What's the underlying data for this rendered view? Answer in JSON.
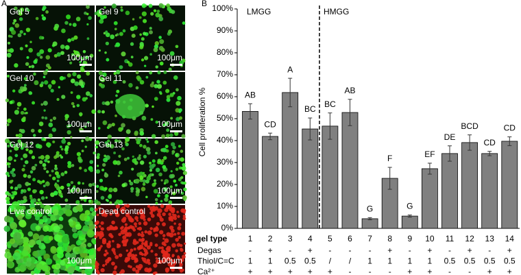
{
  "panel_a": {
    "label": "A",
    "images": [
      {
        "label": "Gel 5",
        "scale": "100μm"
      },
      {
        "label": "Gel 9",
        "scale": "100μm"
      },
      {
        "label": "Gel 10",
        "scale": "100μm"
      },
      {
        "label": "Gel 11",
        "scale": "100μm"
      },
      {
        "label": "Gel 12",
        "scale": "100μm"
      },
      {
        "label": "Gel 13",
        "scale": "100μm"
      },
      {
        "label": "Live control",
        "scale": "100μm"
      },
      {
        "label": "Dead control",
        "scale": "100μm"
      }
    ]
  },
  "chart_data": {
    "type": "bar",
    "panel_label": "B",
    "y_label": "Cell proliferation %",
    "x_label": "gel type",
    "annotations": [
      "LMGG",
      "HMGG"
    ],
    "categories": [
      "1",
      "2",
      "3",
      "4",
      "5",
      "6",
      "7",
      "8",
      "9",
      "10",
      "11",
      "12",
      "13",
      "14"
    ],
    "values": [
      53.3,
      41.9,
      61.9,
      45.3,
      46.6,
      52.8,
      4.4,
      22.8,
      5.6,
      27.2,
      34.1,
      39.1,
      34.1,
      39.7
    ],
    "errors": [
      3.5,
      1.5,
      6.5,
      5,
      6,
      6,
      0.5,
      5,
      0.5,
      2.5,
      3.5,
      3.5,
      1,
      2
    ],
    "group_letters": [
      "AB",
      "CD",
      "A",
      "BC",
      "BC",
      "AB",
      "G",
      "F",
      "G",
      "EF",
      "DE",
      "BCD",
      "CD",
      "CD"
    ],
    "color": "#808080",
    "ylim": [
      0,
      100
    ],
    "yticks": [
      {
        "value": 0,
        "label": "0%"
      },
      {
        "value": 10,
        "label": "10%"
      },
      {
        "value": 20,
        "label": "20%"
      },
      {
        "value": 30,
        "label": "30%"
      },
      {
        "value": 40,
        "label": "40%"
      },
      {
        "value": 50,
        "label": "50%"
      },
      {
        "value": 60,
        "label": "60%"
      },
      {
        "value": 70,
        "label": "70%"
      },
      {
        "value": 80,
        "label": "80%"
      },
      {
        "value": 90,
        "label": "90%"
      },
      {
        "value": 100,
        "label": "100%"
      }
    ],
    "table": [
      {
        "label": "Degas",
        "cells": [
          "-",
          "+",
          "-",
          "+",
          "-",
          "-",
          "-",
          "+",
          "-",
          "+",
          "-",
          "+",
          "-",
          "+"
        ]
      },
      {
        "label": "Thiol/C=C",
        "cells": [
          "1",
          "1",
          "0.5",
          "0.5",
          "/",
          "/",
          "1",
          "1",
          "1",
          "1",
          "0.5",
          "0.5",
          "0.5",
          "0.5"
        ]
      },
      {
        "label": "Ca²⁺",
        "cells": [
          "+",
          "+",
          "+",
          "+",
          "+",
          "-",
          "-",
          "-",
          "+",
          "+",
          "-",
          "-",
          "+",
          "+"
        ]
      }
    ]
  }
}
